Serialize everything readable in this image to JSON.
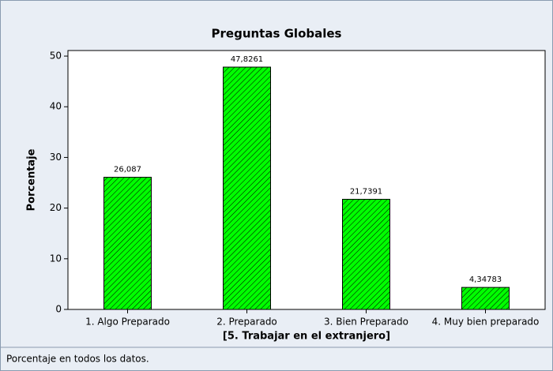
{
  "chart_data": {
    "type": "bar",
    "title": "Preguntas Globales",
    "categories": [
      "1. Algo Preparado",
      "2. Preparado",
      "3. Bien Preparado",
      "4. Muy bien preparado"
    ],
    "values": [
      26.087,
      47.8261,
      21.7391,
      4.34783
    ],
    "value_labels": [
      "26,087",
      "47,8261",
      "21,7391",
      "4,34783"
    ],
    "color": "#00ff00",
    "xlabel": "[5. Trabajar en el extranjero]",
    "ylabel": "Porcentaje",
    "footnote": "Porcentaje en todos los datos.",
    "ylim": [
      0,
      51.1
    ],
    "yticks": [
      0,
      10,
      20,
      30,
      40,
      50
    ],
    "grid": false
  }
}
